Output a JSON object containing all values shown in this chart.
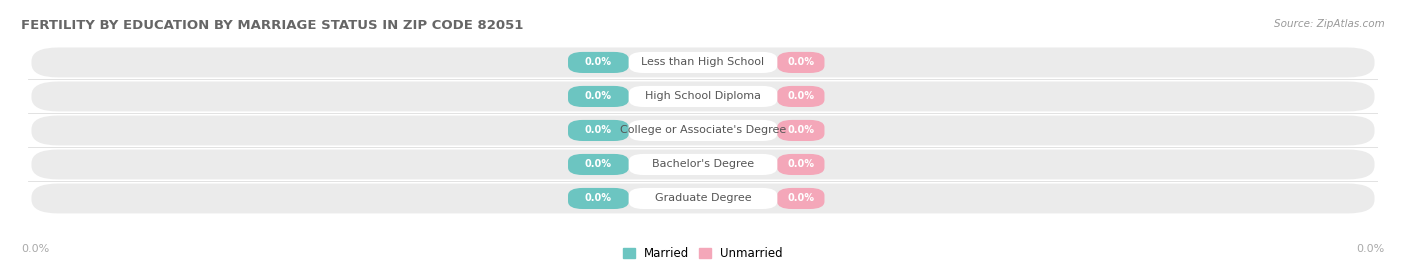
{
  "title": "FERTILITY BY EDUCATION BY MARRIAGE STATUS IN ZIP CODE 82051",
  "source": "Source: ZipAtlas.com",
  "categories": [
    "Less than High School",
    "High School Diploma",
    "College or Associate's Degree",
    "Bachelor's Degree",
    "Graduate Degree"
  ],
  "married_values": [
    0.0,
    0.0,
    0.0,
    0.0,
    0.0
  ],
  "unmarried_values": [
    0.0,
    0.0,
    0.0,
    0.0,
    0.0
  ],
  "married_color": "#6cc5c1",
  "unmarried_color": "#f4a7b9",
  "row_bg_color": "#ebebeb",
  "background_color": "#ffffff",
  "title_color": "#666666",
  "source_color": "#999999",
  "axis_label_color": "#aaaaaa",
  "label_color": "#555555",
  "title_fontsize": 9.5,
  "source_fontsize": 7.5,
  "tick_fontsize": 8,
  "bar_value_fontsize": 7,
  "label_fontsize": 8,
  "legend_fontsize": 8.5,
  "axis_label_left": "0.0%",
  "axis_label_right": "0.0%"
}
